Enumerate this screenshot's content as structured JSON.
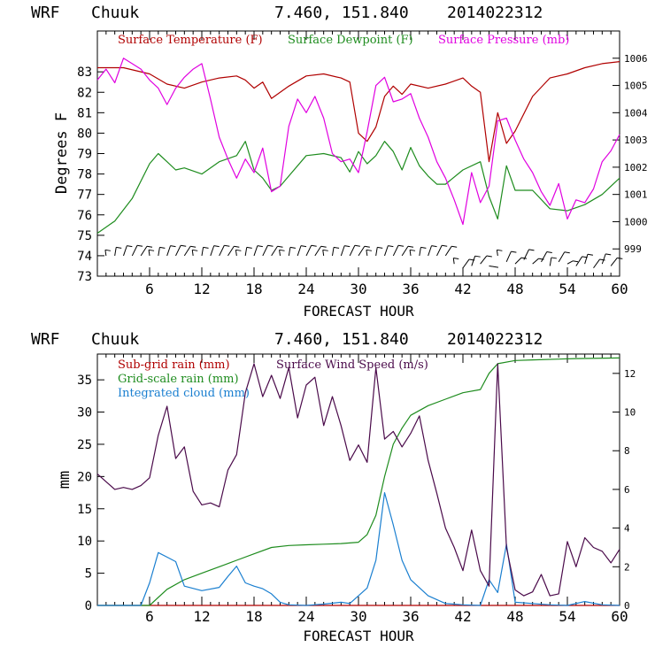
{
  "chart_data": [
    {
      "type": "line",
      "header": {
        "model": "WRF",
        "site": "Chuuk",
        "coords": "7.460, 151.840",
        "run": "2014022312"
      },
      "xlabel": "FORECAST HOUR",
      "ylabel": "Degrees F",
      "xlim": [
        0,
        60
      ],
      "ylim": [
        73,
        85
      ],
      "y2lim": [
        998,
        1007
      ],
      "x_ticks": [
        "6",
        "12",
        "18",
        "24",
        "30",
        "36",
        "42",
        "48",
        "54",
        "60"
      ],
      "y_ticks": [
        "73",
        "74",
        "75",
        "76",
        "77",
        "78",
        "79",
        "80",
        "81",
        "82",
        "83"
      ],
      "y2_ticks": [
        "999",
        "1000",
        "1001",
        "1002",
        "1003",
        "1004",
        "1005",
        "1006"
      ],
      "legend": [
        {
          "label": "Surface Temperature (F)",
          "color": "#b00000"
        },
        {
          "label": "Surface Dewpoint (F)",
          "color": "#1e8c1e"
        },
        {
          "label": "Surface Pressure (mb)",
          "color": "#e000e0"
        }
      ],
      "series": [
        {
          "name": "Surface Temperature (F)",
          "axis": "left",
          "color": "#b00000",
          "x": [
            0,
            3,
            6,
            8,
            10,
            12,
            14,
            16,
            17,
            18,
            19,
            20,
            22,
            24,
            26,
            28,
            29,
            30,
            31,
            32,
            33,
            34,
            35,
            36,
            38,
            40,
            42,
            43,
            44,
            45,
            46,
            47,
            48,
            50,
            52,
            54,
            56,
            58,
            60
          ],
          "values": [
            83.2,
            83.2,
            82.9,
            82.4,
            82.2,
            82.5,
            82.7,
            82.8,
            82.6,
            82.2,
            82.5,
            81.7,
            82.3,
            82.8,
            82.9,
            82.7,
            82.5,
            80.0,
            79.6,
            80.3,
            81.8,
            82.3,
            81.9,
            82.4,
            82.2,
            82.4,
            82.7,
            82.3,
            82.0,
            78.6,
            81.0,
            79.5,
            80.1,
            81.8,
            82.7,
            82.9,
            83.2,
            83.4,
            83.5
          ]
        },
        {
          "name": "Surface Dewpoint (F)",
          "axis": "left",
          "color": "#1e8c1e",
          "x": [
            0,
            2,
            4,
            6,
            7,
            8,
            9,
            10,
            12,
            14,
            16,
            17,
            18,
            19,
            20,
            21,
            22,
            24,
            26,
            28,
            29,
            30,
            31,
            32,
            33,
            34,
            35,
            36,
            37,
            38,
            39,
            40,
            42,
            44,
            45,
            46,
            47,
            48,
            50,
            52,
            54,
            56,
            58,
            60
          ],
          "values": [
            75.1,
            75.7,
            76.8,
            78.5,
            79.0,
            78.6,
            78.2,
            78.3,
            78.0,
            78.6,
            78.9,
            79.6,
            78.2,
            77.8,
            77.2,
            77.4,
            77.9,
            78.9,
            79.0,
            78.8,
            78.1,
            79.1,
            78.5,
            78.9,
            79.6,
            79.1,
            78.2,
            79.3,
            78.4,
            77.9,
            77.5,
            77.5,
            78.2,
            78.6,
            76.9,
            75.8,
            78.4,
            77.2,
            77.2,
            76.3,
            76.2,
            76.5,
            77.0,
            77.8
          ]
        },
        {
          "name": "Surface Pressure (mb)",
          "axis": "right",
          "color": "#e000e0",
          "x": [
            0,
            1,
            2,
            3,
            4,
            5,
            6,
            7,
            8,
            9,
            10,
            11,
            12,
            13,
            14,
            15,
            16,
            17,
            18,
            19,
            20,
            21,
            22,
            23,
            24,
            25,
            26,
            27,
            28,
            29,
            30,
            31,
            32,
            33,
            34,
            35,
            36,
            37,
            38,
            39,
            40,
            41,
            42,
            43,
            44,
            45,
            46,
            47,
            48,
            49,
            50,
            51,
            52,
            53,
            54,
            55,
            56,
            57,
            58,
            59,
            60
          ],
          "values": [
            1005.2,
            1005.6,
            1005.1,
            1006.0,
            1005.8,
            1005.6,
            1005.2,
            1004.9,
            1004.3,
            1004.9,
            1005.3,
            1005.6,
            1005.8,
            1004.5,
            1003.1,
            1002.3,
            1001.6,
            1002.3,
            1001.8,
            1002.7,
            1001.1,
            1001.3,
            1003.5,
            1004.5,
            1004.0,
            1004.6,
            1003.8,
            1002.5,
            1002.2,
            1002.3,
            1001.8,
            1003.3,
            1005.0,
            1005.3,
            1004.4,
            1004.5,
            1004.7,
            1003.8,
            1003.1,
            1002.2,
            1001.6,
            1000.8,
            999.9,
            1001.8,
            1000.7,
            1001.3,
            1003.7,
            1003.8,
            1003.0,
            1002.3,
            1001.8,
            1001.1,
            1000.6,
            1001.4,
            1000.1,
            1000.8,
            1000.7,
            1001.2,
            1002.2,
            1002.6,
            1003.2
          ]
        },
        {
          "name": "Wind barbs",
          "axis": "left",
          "color": "#000000",
          "x": [
            1,
            2,
            3,
            4,
            5,
            6,
            7,
            8,
            9,
            10,
            11,
            12,
            13,
            14,
            15,
            16,
            17,
            18,
            19,
            20,
            21,
            22,
            23,
            24,
            25,
            26,
            27,
            28,
            29,
            30,
            31,
            32,
            33,
            34,
            35,
            36,
            37,
            38,
            39,
            40,
            41,
            42,
            43,
            44,
            45,
            46,
            47,
            48,
            49,
            50,
            51,
            52,
            53,
            54,
            55,
            56,
            57,
            58,
            59
          ],
          "values": [
            74.0,
            74.0,
            74.0,
            74.0,
            74.0,
            74.0,
            74.0,
            74.0,
            74.0,
            74.0,
            74.0,
            74.0,
            74.0,
            74.0,
            74.0,
            74.0,
            74.0,
            74.0,
            74.0,
            74.0,
            74.0,
            74.0,
            74.0,
            74.0,
            74.0,
            74.0,
            74.0,
            74.0,
            74.0,
            74.0,
            74.0,
            74.0,
            74.0,
            74.0,
            74.0,
            74.0,
            74.0,
            74.0,
            74.0,
            74.0,
            73.6,
            73.4,
            73.5,
            73.6,
            73.5,
            74.0,
            73.7,
            73.6,
            73.8,
            73.6,
            73.7,
            73.5,
            73.7,
            73.6,
            73.5,
            73.6,
            73.4,
            73.6,
            73.5
          ]
        }
      ]
    },
    {
      "type": "line",
      "header": {
        "model": "WRF",
        "site": "Chuuk",
        "coords": "7.460, 151.840",
        "run": "2014022312"
      },
      "xlabel": "FORECAST HOUR",
      "ylabel": "mm",
      "xlim": [
        0,
        60
      ],
      "ylim": [
        0,
        39
      ],
      "y2lim": [
        0,
        13
      ],
      "x_ticks": [
        "6",
        "12",
        "18",
        "24",
        "30",
        "36",
        "42",
        "48",
        "54",
        "60"
      ],
      "y_ticks": [
        "0",
        "5",
        "10",
        "15",
        "20",
        "25",
        "30",
        "35"
      ],
      "y2_ticks": [
        "0",
        "2",
        "4",
        "6",
        "8",
        "10",
        "12"
      ],
      "legend": [
        {
          "label": "Sub-grid rain (mm)",
          "color": "#b00000"
        },
        {
          "label": "Surface Wind Speed (m/s)",
          "color": "#4a0a4a"
        },
        {
          "label": "Grid-scale rain (mm)",
          "color": "#1e8c1e"
        },
        {
          "label": "Integrated cloud (mm)",
          "color": "#1a7fd0"
        }
      ],
      "series": [
        {
          "name": "Sub-grid rain (mm)",
          "axis": "left",
          "color": "#b00000",
          "x": [
            0,
            60
          ],
          "values": [
            0,
            0
          ]
        },
        {
          "name": "Grid-scale rain (mm)",
          "axis": "left",
          "color": "#1e8c1e",
          "x": [
            0,
            6,
            8,
            10,
            12,
            14,
            16,
            18,
            20,
            22,
            24,
            26,
            28,
            30,
            31,
            32,
            33,
            34,
            35,
            36,
            38,
            40,
            42,
            44,
            45,
            46,
            48,
            50,
            55,
            60
          ],
          "values": [
            0,
            0,
            2.5,
            4.0,
            5.0,
            6.0,
            7.0,
            8.0,
            9.0,
            9.3,
            9.4,
            9.5,
            9.6,
            9.8,
            11.0,
            14.0,
            20.0,
            25.0,
            27.5,
            29.5,
            31.0,
            32.0,
            33.0,
            33.5,
            36.0,
            37.5,
            38.0,
            38.1,
            38.3,
            38.4
          ]
        },
        {
          "name": "Integrated cloud (mm)",
          "axis": "left",
          "color": "#1a7fd0",
          "x": [
            0,
            5,
            6,
            7,
            8,
            9,
            10,
            12,
            14,
            15,
            16,
            17,
            18,
            19,
            20,
            21,
            22,
            24,
            26,
            28,
            29,
            30,
            31,
            32,
            33,
            34,
            35,
            36,
            38,
            40,
            42,
            44,
            45,
            46,
            47,
            48,
            50,
            52,
            54,
            56,
            58,
            60
          ],
          "values": [
            0,
            0,
            3.5,
            8.2,
            7.5,
            6.8,
            3.0,
            2.3,
            2.8,
            4.5,
            6.1,
            3.5,
            3.0,
            2.6,
            1.8,
            0.5,
            0.1,
            0.0,
            0.2,
            0.5,
            0.3,
            1.5,
            2.7,
            7.0,
            17.5,
            12.5,
            7.0,
            4.0,
            1.5,
            0.3,
            0.1,
            0.0,
            4.0,
            2.0,
            9.5,
            0.5,
            0.3,
            0.1,
            0.0,
            0.6,
            0.1,
            0.0
          ]
        },
        {
          "name": "Surface Wind Speed (m/s)",
          "axis": "right",
          "color": "#4a0a4a",
          "x": [
            0,
            1,
            2,
            3,
            4,
            5,
            6,
            7,
            8,
            9,
            10,
            11,
            12,
            13,
            14,
            15,
            16,
            17,
            18,
            19,
            20,
            21,
            22,
            23,
            24,
            25,
            26,
            27,
            28,
            29,
            30,
            31,
            32,
            33,
            34,
            35,
            36,
            37,
            38,
            39,
            40,
            41,
            42,
            43,
            44,
            45,
            46,
            47,
            48,
            49,
            50,
            51,
            52,
            53,
            54,
            55,
            56,
            57,
            58,
            59,
            60
          ],
          "values": [
            6.8,
            6.4,
            6.0,
            6.1,
            6.0,
            6.2,
            6.6,
            8.8,
            10.3,
            7.6,
            8.2,
            5.9,
            5.2,
            5.3,
            5.1,
            7.0,
            7.8,
            11.0,
            12.5,
            10.8,
            11.9,
            10.7,
            12.3,
            9.7,
            11.4,
            11.8,
            9.3,
            10.8,
            9.3,
            7.5,
            8.3,
            7.4,
            12.3,
            8.6,
            9.0,
            8.2,
            8.9,
            9.8,
            7.5,
            5.8,
            4.0,
            3.0,
            1.8,
            3.9,
            1.8,
            1.0,
            12.5,
            3.0,
            0.8,
            0.5,
            0.7,
            1.6,
            0.5,
            0.6,
            3.3,
            2.0,
            3.5,
            3.0,
            2.8,
            2.2,
            2.9
          ]
        }
      ]
    }
  ]
}
